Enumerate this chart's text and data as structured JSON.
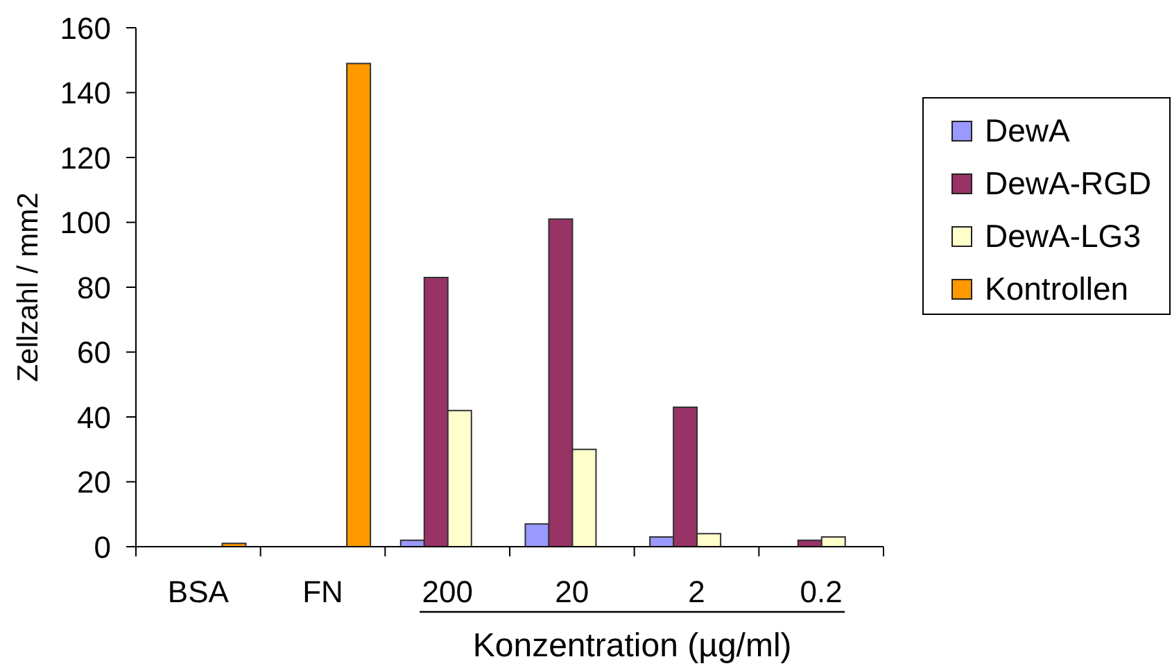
{
  "chart_data": {
    "type": "bar",
    "categories": [
      "BSA",
      "FN",
      "200",
      "20",
      "2",
      "0.2"
    ],
    "series": [
      {
        "name": "DewA",
        "color": "#9999ff",
        "values": [
          null,
          null,
          2,
          7,
          3,
          null
        ]
      },
      {
        "name": "DewA-RGD",
        "color": "#993366",
        "values": [
          null,
          null,
          83,
          101,
          43,
          2
        ]
      },
      {
        "name": "DewA-LG3",
        "color": "#ffffcc",
        "values": [
          null,
          null,
          42,
          30,
          4,
          3
        ]
      },
      {
        "name": "Kontrollen",
        "color": "#ff9900",
        "values": [
          1,
          149,
          null,
          null,
          null,
          null
        ]
      }
    ],
    "ylim": [
      0,
      160
    ],
    "yticks": [
      0,
      20,
      40,
      60,
      80,
      100,
      120,
      140,
      160
    ],
    "ylabel": "Zellzahl / mm2",
    "xlabel": "Konzentration (µg/ml)",
    "legend": "right"
  }
}
